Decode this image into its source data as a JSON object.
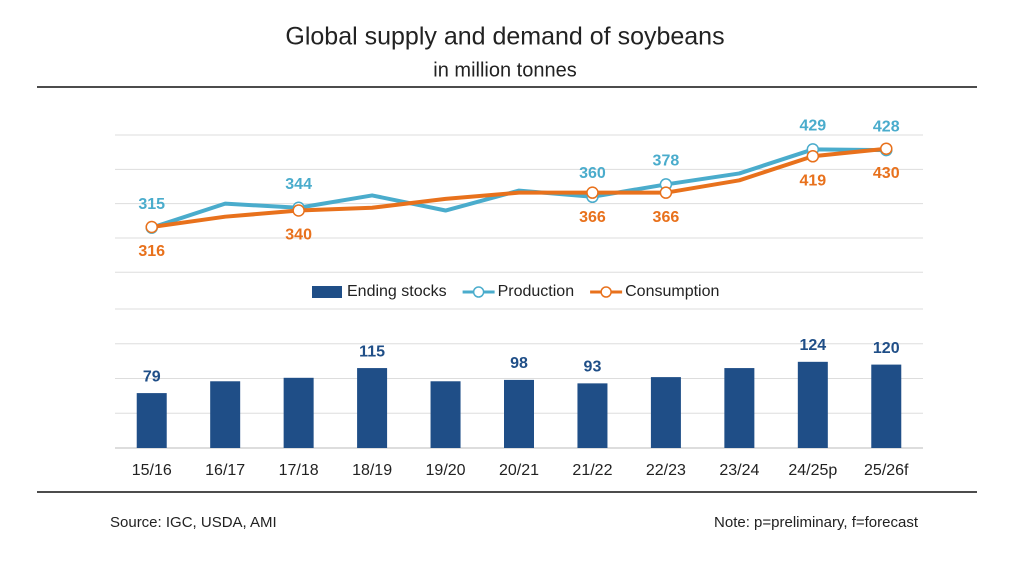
{
  "title": "Global supply and demand of soybeans",
  "subtitle": "in million tonnes",
  "source": "Source: IGC, USDA, AMI",
  "note": "Note: p=preliminary, f=forecast",
  "chart_data": [
    {
      "type": "line",
      "ylim": [
        250,
        450
      ],
      "yticks": [
        250,
        300,
        350,
        400,
        450
      ],
      "grid": true,
      "series": [
        {
          "name": "Production",
          "color": "#4aaccc",
          "label_position": "above",
          "values": [
            315,
            350,
            344,
            362,
            340,
            369,
            360,
            378,
            394,
            429,
            428
          ],
          "labeled": [
            0,
            2,
            6,
            7,
            9,
            10
          ]
        },
        {
          "name": "Consumption",
          "color": "#e8711c",
          "label_position": "below",
          "values": [
            316,
            331,
            340,
            344,
            357,
            366,
            366,
            366,
            384,
            419,
            430
          ],
          "labeled": [
            0,
            2,
            6,
            7,
            9,
            10
          ]
        }
      ]
    },
    {
      "type": "bar",
      "categories": [
        "15/16",
        "16/17",
        "17/18",
        "18/19",
        "19/20",
        "20/21",
        "21/22",
        "22/23",
        "23/24",
        "24/25p",
        "25/26f"
      ],
      "ylim": [
        0,
        200
      ],
      "yticks": [
        0,
        50,
        100,
        150,
        200
      ],
      "grid": true,
      "series": [
        {
          "name": "Ending stocks",
          "color": "#1f4e87",
          "values": [
            79,
            96,
            101,
            115,
            96,
            98,
            93,
            102,
            115,
            124,
            120
          ],
          "labeled": [
            0,
            3,
            5,
            6,
            9,
            10
          ]
        }
      ]
    }
  ]
}
